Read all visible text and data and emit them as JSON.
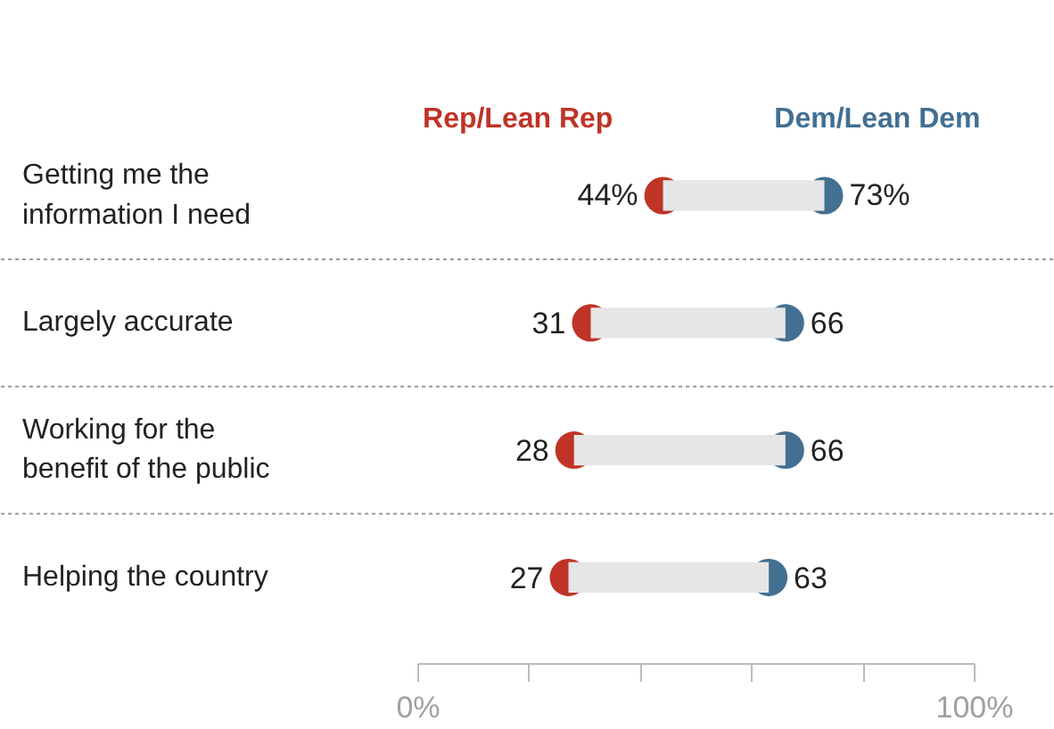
{
  "chart_data": {
    "type": "scatter",
    "orientation": "horizontal",
    "marker": "circle",
    "legend": false,
    "grid": "y",
    "categories": [
      "Getting me the\ninformation I need",
      "Largely accurate",
      "Working for the\nbenefit of the public",
      "Helping the country"
    ],
    "xlim": [
      0,
      100
    ],
    "xticks": [
      {
        "value": 0,
        "label": "0%"
      },
      {
        "value": 20,
        "label": null
      },
      {
        "value": 40,
        "label": null
      },
      {
        "value": 60,
        "label": null
      },
      {
        "value": 80,
        "label": null
      },
      {
        "value": 100,
        "label": "100%"
      }
    ],
    "series": [
      {
        "type": "bar",
        "color": "#e6e6e6",
        "base": [
          44,
          31,
          28,
          27
        ],
        "values": [
          29,
          35,
          38,
          36
        ]
      },
      {
        "name": "Rep/Lean Rep",
        "color": "#bf3427",
        "values": [
          44,
          31,
          28,
          27
        ],
        "value_labels": [
          "44%",
          "31",
          "28",
          "27"
        ]
      },
      {
        "name": "Dem/Lean Dem",
        "color": "#436f91",
        "values": [
          73,
          66,
          66,
          63
        ],
        "value_labels": [
          "73%",
          "66",
          "66",
          "63"
        ]
      }
    ]
  }
}
